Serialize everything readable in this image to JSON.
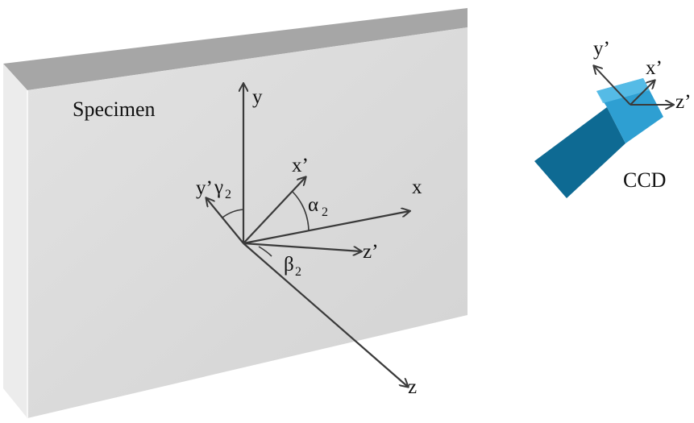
{
  "specimen": {
    "label": "Specimen",
    "colors": {
      "front": "#d9d9d9",
      "top": "#a6a6a6",
      "side": "#ececec"
    }
  },
  "axes": {
    "y": "y",
    "x": "x",
    "z": "z",
    "x_prime": "x’",
    "y_prime": "y’",
    "z_prime": "z’"
  },
  "angles": {
    "alpha": {
      "symbol": "α",
      "subscript": "2"
    },
    "beta": {
      "symbol": "β",
      "subscript": "2"
    },
    "gamma": {
      "symbol": "γ",
      "subscript": "2"
    }
  },
  "ccd": {
    "label": "CCD",
    "axes": {
      "x_prime": "x’",
      "y_prime": "y’",
      "z_prime": "z’"
    },
    "colors": {
      "body": "#0e6a93",
      "end": "#2e9fd2",
      "top": "#5cc0ea"
    }
  },
  "line_color": "#3a3a3a"
}
